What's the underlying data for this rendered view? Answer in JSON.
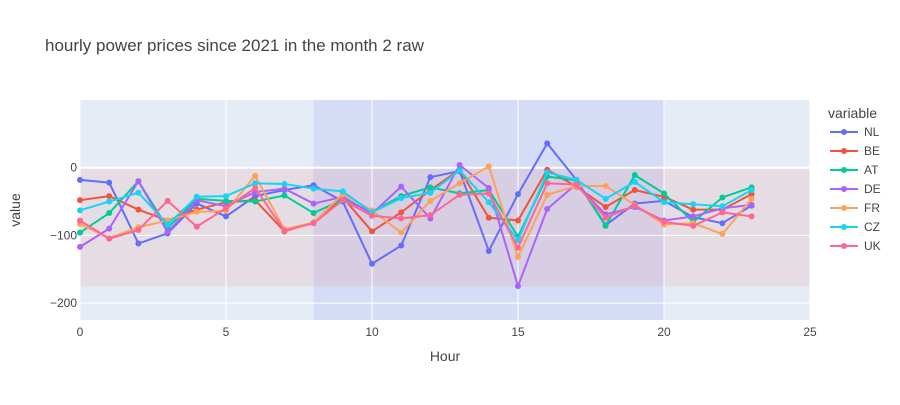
{
  "chart_data": {
    "type": "line",
    "title": "hourly power prices since 2021 in the month 2  raw",
    "xlabel": "Hour",
    "ylabel": "value",
    "xlim": [
      0,
      25
    ],
    "ylim": [
      -225,
      100
    ],
    "x_ticks": [
      0,
      5,
      10,
      15,
      20,
      25
    ],
    "y_ticks": [
      0,
      -100,
      -200
    ],
    "y_tick_labels": [
      "0",
      "−100",
      "−200"
    ],
    "grid": true,
    "legend_title": "variable",
    "legend_position": "right",
    "background": {
      "plot_bg": "#e5ecf6",
      "vertical_band": {
        "x0": 8,
        "x1": 20,
        "color": "#636efa",
        "opacity": 0.12
      },
      "horizontal_band": {
        "y0": -175,
        "y1": 0,
        "color": "#ef553b",
        "opacity": 0.1
      }
    },
    "x": [
      0,
      1,
      2,
      3,
      4,
      5,
      6,
      7,
      8,
      9,
      10,
      11,
      12,
      13,
      14,
      15,
      16,
      17,
      18,
      19,
      20,
      21,
      22,
      23
    ],
    "series": [
      {
        "name": "NL",
        "color": "#636efa",
        "values": [
          -18,
          -22,
          -112,
          -97,
          -53,
          -72,
          -42,
          -33,
          -26,
          -50,
          -142,
          -115,
          -14,
          -5,
          -123,
          -39,
          36,
          -18,
          -85,
          -53,
          -49,
          -73,
          -82,
          -56
        ]
      },
      {
        "name": "BE",
        "color": "#ef553b",
        "values": [
          -48,
          -42,
          -62,
          -78,
          -62,
          -51,
          -48,
          -94,
          -81,
          -44,
          -94,
          -66,
          -33,
          -3,
          -74,
          -78,
          -3,
          -28,
          -58,
          -33,
          -43,
          -62,
          -62,
          -39
        ]
      },
      {
        "name": "AT",
        "color": "#00cc96",
        "values": [
          -96,
          -67,
          -20,
          -89,
          -46,
          -49,
          -50,
          -41,
          -67,
          -47,
          -65,
          -42,
          -29,
          -38,
          -33,
          -102,
          -13,
          -19,
          -86,
          -11,
          -38,
          -80,
          -44,
          -29
        ]
      },
      {
        "name": "DE",
        "color": "#ab63fa",
        "values": [
          -117,
          -90,
          -20,
          -95,
          -48,
          -57,
          -36,
          -31,
          -53,
          -43,
          -68,
          -28,
          -75,
          4,
          -30,
          -175,
          -61,
          -24,
          -69,
          -58,
          -78,
          -72,
          -60,
          -55
        ]
      },
      {
        "name": "FR",
        "color": "#ffa15a",
        "values": [
          -83,
          -104,
          -88,
          -78,
          -65,
          -64,
          -12,
          -91,
          -81,
          -39,
          -63,
          -96,
          -49,
          -23,
          2,
          -132,
          -40,
          -27,
          -27,
          -55,
          -84,
          -82,
          -98,
          -46
        ]
      },
      {
        "name": "CZ",
        "color": "#19d3f3",
        "values": [
          -63,
          -50,
          -37,
          -84,
          -43,
          -42,
          -23,
          -24,
          -31,
          -35,
          -66,
          -45,
          -37,
          -4,
          -51,
          -107,
          -7,
          -18,
          -46,
          -21,
          -51,
          -54,
          -57,
          -33
        ]
      },
      {
        "name": "UK",
        "color": "#ff6692",
        "values": [
          -78,
          -105,
          -92,
          -49,
          -87,
          -60,
          -30,
          -93,
          -82,
          -48,
          -71,
          -75,
          -70,
          -40,
          -38,
          -118,
          -23,
          -25,
          -74,
          -56,
          -80,
          -86,
          -66,
          -72
        ]
      }
    ]
  }
}
